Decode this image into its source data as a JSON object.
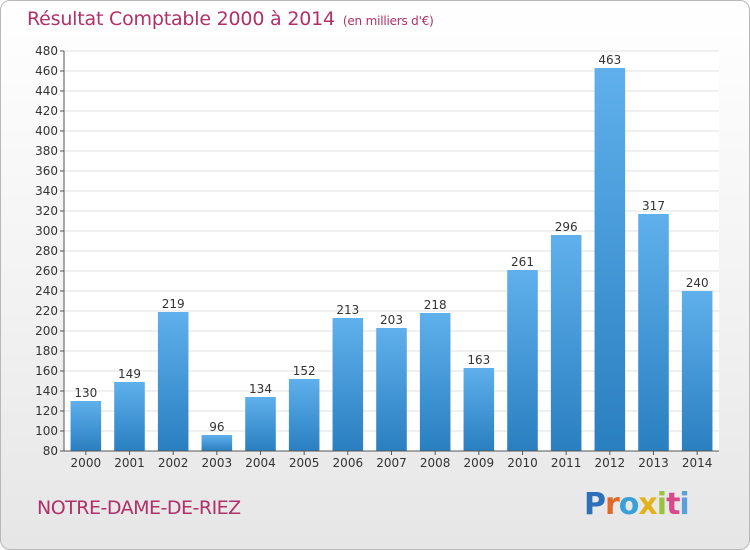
{
  "title": "Résultat Comptable 2000 à 2014",
  "unit": "(en milliers d'€)",
  "commune": "NOTRE-DAME-DE-RIEZ",
  "brand": {
    "letters": [
      "P",
      "r",
      "o",
      "x",
      "i",
      "t",
      "i"
    ],
    "colors": [
      "#2d6fb8",
      "#e06a2a",
      "#3aa0d8",
      "#e2b21c",
      "#9bc23c",
      "#d94a8a",
      "#5aa0d8"
    ]
  },
  "colors": {
    "bar_top": "#5fb0ec",
    "bar_bottom": "#2a7fc0",
    "title": "#b03068",
    "grid": "#e2e2e2",
    "axis": "#555555"
  },
  "chart_data": {
    "type": "bar",
    "categories": [
      "2000",
      "2001",
      "2002",
      "2003",
      "2004",
      "2005",
      "2006",
      "2007",
      "2008",
      "2009",
      "2010",
      "2011",
      "2012",
      "2013",
      "2014"
    ],
    "values": [
      130,
      149,
      219,
      96,
      134,
      152,
      213,
      203,
      218,
      163,
      261,
      296,
      463,
      317,
      240
    ],
    "ylim": [
      80,
      480
    ],
    "ytick_step": 20,
    "grid": true,
    "data_labels": true
  }
}
